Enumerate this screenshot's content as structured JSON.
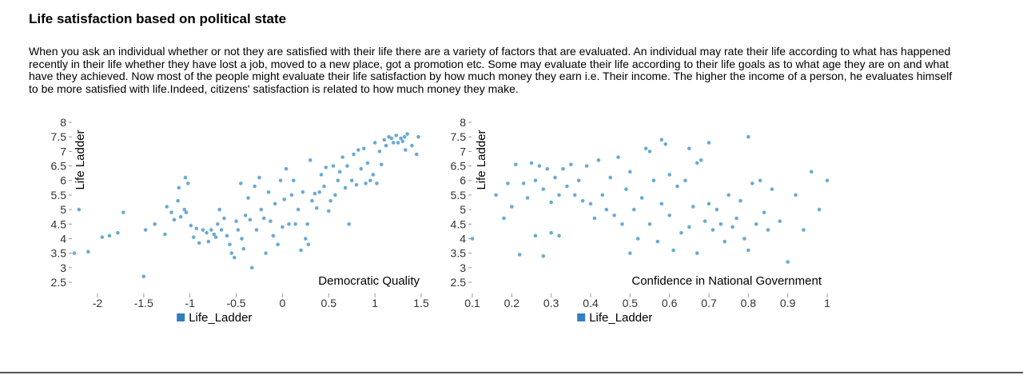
{
  "page": {
    "title": "Life satisfaction based on political state",
    "description": "When you ask an individual whether or not they are satisfied with their life there are a variety of factors that are evaluated. An individual may rate their life according to what has happened recently in their life whether they have lost a job, moved to a new place, got a promotion etc. Some may evaluate their life according to their life goals as to what age they are on and what have they achieved. Now most of the people might evaluate their life satisfaction by how much money they earn i.e. Their income. The higher the income of a person, he evaluates himself to be more satisfied with life.Indeed, citizens' satisfaction is related to how much money they make."
  },
  "colors": {
    "point": "#6aaad4",
    "legend_swatch": "#2f7fc1",
    "axis": "#999999"
  },
  "chart_data": [
    {
      "type": "scatter",
      "xlabel": "Democratic Quality",
      "ylabel": "Life Ladder",
      "x_tick_labels": [
        "-2",
        "-1.5",
        "-1",
        "-0.5",
        "0",
        "0.5",
        "1",
        "1.5"
      ],
      "y_tick_labels": [
        "2.5",
        "3",
        "3.5",
        "4",
        "4.5",
        "5",
        "5.5",
        "6",
        "6.5",
        "7",
        "7.5",
        "8"
      ],
      "xlim": [
        -2.25,
        1.5
      ],
      "ylim": [
        2.5,
        8
      ],
      "legend": [
        "Life_Ladder"
      ],
      "series": [
        {
          "name": "Life_Ladder",
          "points": [
            [
              -2.25,
              3.5
            ],
            [
              -2.2,
              5.0
            ],
            [
              -2.1,
              3.55
            ],
            [
              -1.95,
              4.05
            ],
            [
              -1.87,
              4.1
            ],
            [
              -1.78,
              4.2
            ],
            [
              -1.72,
              4.9
            ],
            [
              -1.5,
              2.7
            ],
            [
              -1.48,
              4.3
            ],
            [
              -1.38,
              4.5
            ],
            [
              -1.27,
              4.15
            ],
            [
              -1.25,
              5.1
            ],
            [
              -1.2,
              4.9
            ],
            [
              -1.17,
              4.65
            ],
            [
              -1.13,
              5.3
            ],
            [
              -1.12,
              5.75
            ],
            [
              -1.1,
              4.75
            ],
            [
              -1.06,
              5.0
            ],
            [
              -1.05,
              6.1
            ],
            [
              -1.04,
              4.9
            ],
            [
              -1.02,
              5.9
            ],
            [
              -0.99,
              4.45
            ],
            [
              -0.96,
              4.05
            ],
            [
              -0.93,
              4.35
            ],
            [
              -0.9,
              3.85
            ],
            [
              -0.86,
              4.3
            ],
            [
              -0.82,
              4.2
            ],
            [
              -0.8,
              3.9
            ],
            [
              -0.77,
              4.3
            ],
            [
              -0.74,
              4.15
            ],
            [
              -0.72,
              4.05
            ],
            [
              -0.7,
              4.5
            ],
            [
              -0.68,
              5.0
            ],
            [
              -0.66,
              4.3
            ],
            [
              -0.63,
              4.7
            ],
            [
              -0.6,
              4.1
            ],
            [
              -0.57,
              3.8
            ],
            [
              -0.55,
              3.5
            ],
            [
              -0.52,
              3.35
            ],
            [
              -0.5,
              4.6
            ],
            [
              -0.48,
              4.3
            ],
            [
              -0.45,
              5.9
            ],
            [
              -0.44,
              4.0
            ],
            [
              -0.42,
              3.65
            ],
            [
              -0.4,
              4.8
            ],
            [
              -0.37,
              5.4
            ],
            [
              -0.35,
              4.65
            ],
            [
              -0.33,
              3.0
            ],
            [
              -0.3,
              5.8
            ],
            [
              -0.28,
              4.3
            ],
            [
              -0.25,
              6.1
            ],
            [
              -0.23,
              5.0
            ],
            [
              -0.2,
              4.7
            ],
            [
              -0.18,
              3.5
            ],
            [
              -0.15,
              5.6
            ],
            [
              -0.13,
              4.6
            ],
            [
              -0.1,
              4.1
            ],
            [
              -0.08,
              5.2
            ],
            [
              -0.05,
              3.8
            ],
            [
              -0.02,
              6.0
            ],
            [
              0.0,
              4.4
            ],
            [
              0.02,
              5.35
            ],
            [
              0.04,
              6.4
            ],
            [
              0.07,
              4.5
            ],
            [
              0.1,
              5.5
            ],
            [
              0.12,
              6.0
            ],
            [
              0.14,
              4.5
            ],
            [
              0.17,
              5.0
            ],
            [
              0.2,
              3.6
            ],
            [
              0.22,
              5.6
            ],
            [
              0.25,
              4.0
            ],
            [
              0.27,
              4.5
            ],
            [
              0.28,
              3.8
            ],
            [
              0.3,
              6.7
            ],
            [
              0.32,
              5.3
            ],
            [
              0.35,
              5.55
            ],
            [
              0.37,
              5.05
            ],
            [
              0.4,
              5.6
            ],
            [
              0.42,
              6.2
            ],
            [
              0.45,
              5.8
            ],
            [
              0.47,
              6.45
            ],
            [
              0.5,
              4.95
            ],
            [
              0.52,
              5.3
            ],
            [
              0.55,
              6.5
            ],
            [
              0.57,
              5.5
            ],
            [
              0.6,
              6.0
            ],
            [
              0.62,
              6.3
            ],
            [
              0.65,
              6.8
            ],
            [
              0.68,
              5.75
            ],
            [
              0.7,
              6.5
            ],
            [
              0.72,
              4.5
            ],
            [
              0.75,
              6.0
            ],
            [
              0.77,
              6.9
            ],
            [
              0.8,
              5.85
            ],
            [
              0.82,
              7.05
            ],
            [
              0.85,
              6.4
            ],
            [
              0.88,
              7.1
            ],
            [
              0.9,
              5.9
            ],
            [
              0.92,
              6.6
            ],
            [
              0.95,
              6.0
            ],
            [
              0.98,
              6.2
            ],
            [
              1.0,
              7.3
            ],
            [
              1.02,
              5.9
            ],
            [
              1.05,
              7.0
            ],
            [
              1.07,
              6.55
            ],
            [
              1.1,
              7.4
            ],
            [
              1.12,
              7.2
            ],
            [
              1.15,
              7.5
            ],
            [
              1.18,
              7.45
            ],
            [
              1.2,
              7.3
            ],
            [
              1.23,
              7.55
            ],
            [
              1.25,
              7.3
            ],
            [
              1.28,
              7.45
            ],
            [
              1.3,
              7.35
            ],
            [
              1.32,
              7.5
            ],
            [
              1.35,
              7.6
            ],
            [
              1.4,
              7.2
            ],
            [
              1.45,
              6.9
            ],
            [
              1.47,
              7.5
            ],
            [
              1.33,
              7.05
            ]
          ]
        }
      ]
    },
    {
      "type": "scatter",
      "xlabel": "Confidence in National Government",
      "ylabel": "Life Ladder",
      "x_tick_labels": [
        "0.1",
        "0.2",
        "0.3",
        "0.4",
        "0.5",
        "0.6",
        "0.7",
        "0.8",
        "0.9",
        "1"
      ],
      "y_tick_labels": [
        "2.5",
        "3",
        "3.5",
        "4",
        "4.5",
        "5",
        "5.5",
        "6",
        "6.5",
        "7",
        "7.5",
        "8"
      ],
      "xlim": [
        0.1,
        1.0
      ],
      "ylim": [
        2.5,
        8
      ],
      "legend": [
        "Life_Ladder"
      ],
      "series": [
        {
          "name": "Life_Ladder",
          "points": [
            [
              0.1,
              4.0
            ],
            [
              0.16,
              5.5
            ],
            [
              0.18,
              4.7
            ],
            [
              0.19,
              5.9
            ],
            [
              0.2,
              5.1
            ],
            [
              0.21,
              6.55
            ],
            [
              0.22,
              3.45
            ],
            [
              0.23,
              5.9
            ],
            [
              0.24,
              5.4
            ],
            [
              0.25,
              6.6
            ],
            [
              0.26,
              6.0
            ],
            [
              0.26,
              4.1
            ],
            [
              0.27,
              6.5
            ],
            [
              0.28,
              5.7
            ],
            [
              0.28,
              3.4
            ],
            [
              0.29,
              6.4
            ],
            [
              0.3,
              5.25
            ],
            [
              0.3,
              4.2
            ],
            [
              0.31,
              6.1
            ],
            [
              0.32,
              5.5
            ],
            [
              0.32,
              4.1
            ],
            [
              0.33,
              6.4
            ],
            [
              0.34,
              5.8
            ],
            [
              0.35,
              6.55
            ],
            [
              0.36,
              5.5
            ],
            [
              0.37,
              6.0
            ],
            [
              0.38,
              5.3
            ],
            [
              0.39,
              6.5
            ],
            [
              0.4,
              5.2
            ],
            [
              0.41,
              4.7
            ],
            [
              0.42,
              6.7
            ],
            [
              0.43,
              5.5
            ],
            [
              0.44,
              5.0
            ],
            [
              0.45,
              6.1
            ],
            [
              0.46,
              4.8
            ],
            [
              0.47,
              6.8
            ],
            [
              0.48,
              4.5
            ],
            [
              0.49,
              5.7
            ],
            [
              0.5,
              3.5
            ],
            [
              0.5,
              6.3
            ],
            [
              0.51,
              5.0
            ],
            [
              0.52,
              4.0
            ],
            [
              0.53,
              5.4
            ],
            [
              0.54,
              7.1
            ],
            [
              0.55,
              4.5
            ],
            [
              0.56,
              6.0
            ],
            [
              0.57,
              3.9
            ],
            [
              0.58,
              5.2
            ],
            [
              0.59,
              7.25
            ],
            [
              0.6,
              4.8
            ],
            [
              0.6,
              6.2
            ],
            [
              0.61,
              3.6
            ],
            [
              0.62,
              5.8
            ],
            [
              0.63,
              4.2
            ],
            [
              0.64,
              6.0
            ],
            [
              0.65,
              4.4
            ],
            [
              0.66,
              5.1
            ],
            [
              0.67,
              3.5
            ],
            [
              0.68,
              6.7
            ],
            [
              0.69,
              4.6
            ],
            [
              0.7,
              5.2
            ],
            [
              0.71,
              4.3
            ],
            [
              0.72,
              5.0
            ],
            [
              0.73,
              4.5
            ],
            [
              0.74,
              3.9
            ],
            [
              0.75,
              5.5
            ],
            [
              0.76,
              4.4
            ],
            [
              0.77,
              4.7
            ],
            [
              0.78,
              5.3
            ],
            [
              0.79,
              4.0
            ],
            [
              0.8,
              7.5
            ],
            [
              0.8,
              3.6
            ],
            [
              0.81,
              5.9
            ],
            [
              0.82,
              4.5
            ],
            [
              0.83,
              6.0
            ],
            [
              0.84,
              4.9
            ],
            [
              0.85,
              4.3
            ],
            [
              0.86,
              5.7
            ],
            [
              0.88,
              4.6
            ],
            [
              0.9,
              3.2
            ],
            [
              0.92,
              5.5
            ],
            [
              0.94,
              4.3
            ],
            [
              0.96,
              6.3
            ],
            [
              0.98,
              5.0
            ],
            [
              1.0,
              6.0
            ],
            [
              0.55,
              7.0
            ],
            [
              0.58,
              7.4
            ],
            [
              0.65,
              7.1
            ],
            [
              0.67,
              6.6
            ],
            [
              0.7,
              7.3
            ]
          ]
        }
      ]
    }
  ]
}
